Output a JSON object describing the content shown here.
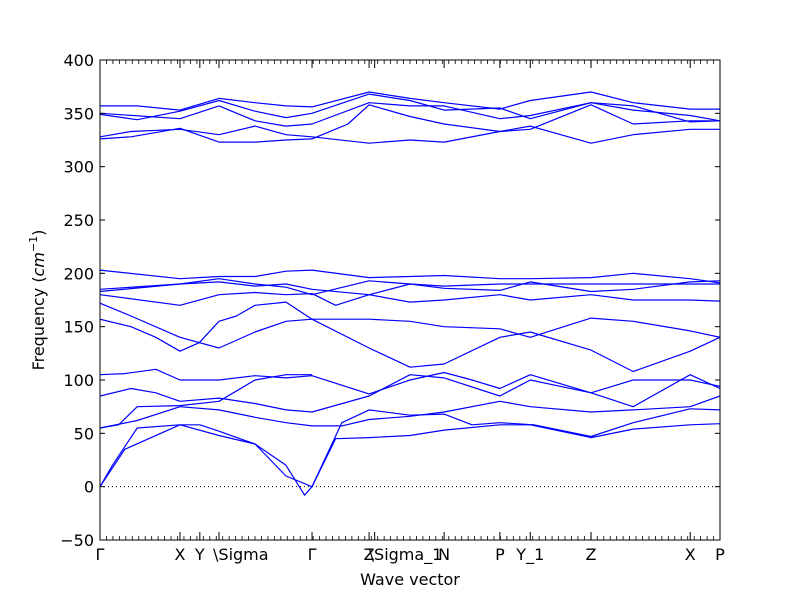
{
  "chart_data": {
    "type": "line",
    "xlabel": "Wave vector",
    "ylabel": "Frequency (cm⁻¹)",
    "ylabel_text": "Frequency (",
    "ylabel_unit_base": "cm",
    "ylabel_unit_exp": "−1",
    "ylabel_close": ")",
    "ylim": [
      -50,
      400
    ],
    "y_ticks": [
      -50,
      0,
      50,
      100,
      150,
      200,
      250,
      300,
      350,
      400
    ],
    "y_tick_labels": [
      "−50",
      "0",
      "50",
      "100",
      "150",
      "200",
      "250",
      "300",
      "350",
      "400"
    ],
    "xlim": [
      0,
      1
    ],
    "x_ticks": [
      {
        "label": "Γ",
        "x": 0.0
      },
      {
        "label": "X",
        "x": 0.129
      },
      {
        "label": "Y",
        "x": 0.161
      },
      {
        "label": "\\Sigma",
        "x": 0.192
      },
      {
        "label": "Γ",
        "x": 0.342
      },
      {
        "label": "Z",
        "x": 0.434
      },
      {
        "label": "\\Sigma_1",
        "x": 0.443
      },
      {
        "label": "N",
        "x": 0.555
      },
      {
        "label": "P",
        "x": 0.645
      },
      {
        "label": "Y_1",
        "x": 0.694
      },
      {
        "label": "Z",
        "x": 0.792
      },
      {
        "label": "X",
        "x": 0.952
      },
      {
        "label": "P",
        "x": 1.0
      }
    ],
    "zero_line": {
      "y": 0,
      "style": "dotted"
    },
    "series_color": "#0000ff",
    "series": [
      {
        "x": [
          0,
          0.02,
          0.06,
          0.129,
          0.161,
          0.192,
          0.25,
          0.3,
          0.33,
          0.342
        ],
        "y": [
          0,
          20,
          55,
          58,
          58,
          52,
          40,
          20,
          -8,
          0
        ]
      },
      {
        "x": [
          0,
          0.04,
          0.129,
          0.192,
          0.25,
          0.3,
          0.342
        ],
        "y": [
          0,
          35,
          58,
          48,
          40,
          10,
          0
        ]
      },
      {
        "x": [
          0.342,
          0.38,
          0.434,
          0.5,
          0.555,
          0.645,
          0.694,
          0.792,
          0.86,
          0.952,
          1.0
        ],
        "y": [
          0,
          45,
          46,
          48,
          53,
          58,
          58,
          46,
          54,
          58,
          59
        ]
      },
      {
        "x": [
          0.342,
          0.39,
          0.434,
          0.5,
          0.555,
          0.6,
          0.645,
          0.7,
          0.792,
          0.86,
          0.952,
          1.0
        ],
        "y": [
          0,
          60,
          72,
          67,
          68,
          58,
          60,
          58,
          47,
          60,
          73,
          72
        ]
      },
      {
        "x": [
          0,
          0.03,
          0.06,
          0.129,
          0.192,
          0.25,
          0.3,
          0.342
        ],
        "y": [
          55,
          58,
          75,
          76,
          80,
          100,
          105,
          105
        ]
      },
      {
        "x": [
          0,
          0.06,
          0.129,
          0.192,
          0.25,
          0.3,
          0.342,
          0.39,
          0.434,
          0.5,
          0.555,
          0.645,
          0.694,
          0.792,
          0.86,
          0.952,
          1.0
        ],
        "y": [
          55,
          62,
          75,
          72,
          65,
          60,
          57,
          57,
          63,
          66,
          70,
          80,
          75,
          70,
          72,
          75,
          85
        ]
      },
      {
        "x": [
          0,
          0.05,
          0.09,
          0.129,
          0.192,
          0.25,
          0.3,
          0.342,
          0.434,
          0.5,
          0.555,
          0.645,
          0.694,
          0.792,
          0.86,
          0.952,
          1.0
        ],
        "y": [
          85,
          92,
          88,
          80,
          83,
          78,
          72,
          70,
          85,
          105,
          102,
          85,
          100,
          88,
          75,
          105,
          92
        ]
      },
      {
        "x": [
          0,
          0.04,
          0.09,
          0.129,
          0.192,
          0.25,
          0.3,
          0.342,
          0.434,
          0.5,
          0.555,
          0.6,
          0.645,
          0.694,
          0.792,
          0.86,
          0.952,
          1.0
        ],
        "y": [
          105,
          106,
          110,
          100,
          100,
          104,
          102,
          104,
          87,
          100,
          107,
          100,
          92,
          105,
          88,
          100,
          100,
          94
        ]
      },
      {
        "x": [
          0,
          0.05,
          0.09,
          0.129,
          0.16,
          0.192,
          0.22,
          0.25,
          0.3,
          0.342,
          0.434,
          0.5,
          0.555,
          0.645,
          0.694,
          0.792,
          0.86,
          0.952,
          1.0
        ],
        "y": [
          157,
          150,
          140,
          127,
          135,
          155,
          160,
          170,
          173,
          157,
          130,
          112,
          115,
          140,
          145,
          128,
          108,
          127,
          140
        ]
      },
      {
        "x": [
          0,
          0.05,
          0.129,
          0.192,
          0.25,
          0.3,
          0.342,
          0.434,
          0.5,
          0.555,
          0.645,
          0.694,
          0.792,
          0.86,
          0.952,
          1.0
        ],
        "y": [
          172,
          160,
          140,
          130,
          145,
          155,
          157,
          157,
          155,
          150,
          148,
          140,
          158,
          155,
          146,
          140
        ]
      },
      {
        "x": [
          0,
          0.129,
          0.192,
          0.25,
          0.3,
          0.342,
          0.38,
          0.434,
          0.5,
          0.555,
          0.645,
          0.694,
          0.792,
          0.86,
          0.952,
          1.0
        ],
        "y": [
          180,
          170,
          180,
          182,
          180,
          181,
          170,
          180,
          173,
          175,
          180,
          175,
          180,
          175,
          175,
          174
        ]
      },
      {
        "x": [
          0,
          0.129,
          0.192,
          0.25,
          0.3,
          0.342,
          0.434,
          0.5,
          0.555,
          0.645,
          0.694,
          0.792,
          0.86,
          0.952,
          1.0
        ],
        "y": [
          185,
          190,
          192,
          188,
          190,
          185,
          180,
          190,
          188,
          190,
          190,
          190,
          190,
          190,
          190
        ]
      },
      {
        "x": [
          0,
          0.129,
          0.192,
          0.25,
          0.3,
          0.342,
          0.434,
          0.5,
          0.555,
          0.645,
          0.694,
          0.792,
          0.86,
          0.952,
          1.0
        ],
        "y": [
          203,
          195,
          197,
          197,
          202,
          203,
          196,
          197,
          198,
          195,
          195,
          196,
          200,
          195,
          191
        ]
      },
      {
        "x": [
          0,
          0.129,
          0.192,
          0.25,
          0.3,
          0.342,
          0.434,
          0.5,
          0.555,
          0.645,
          0.694,
          0.792,
          0.86,
          0.952,
          1.0
        ],
        "y": [
          183,
          190,
          195,
          190,
          187,
          180,
          193,
          190,
          186,
          184,
          192,
          183,
          185,
          192,
          193
        ]
      },
      {
        "x": [
          0,
          0.05,
          0.129,
          0.192,
          0.25,
          0.3,
          0.342,
          0.4,
          0.434,
          0.5,
          0.555,
          0.645,
          0.694,
          0.792,
          0.86,
          0.952,
          1.0
        ],
        "y": [
          326,
          328,
          336,
          323,
          323,
          325,
          326,
          340,
          358,
          347,
          340,
          333,
          335,
          358,
          340,
          343,
          343
        ]
      },
      {
        "x": [
          0,
          0.05,
          0.129,
          0.192,
          0.25,
          0.3,
          0.342,
          0.434,
          0.5,
          0.555,
          0.645,
          0.694,
          0.792,
          0.86,
          0.952,
          1.0
        ],
        "y": [
          328,
          333,
          335,
          330,
          338,
          330,
          328,
          322,
          325,
          323,
          333,
          338,
          322,
          330,
          335,
          335
        ]
      },
      {
        "x": [
          0,
          0.06,
          0.129,
          0.192,
          0.25,
          0.3,
          0.342,
          0.434,
          0.5,
          0.555,
          0.645,
          0.694,
          0.792,
          0.86,
          0.952,
          1.0
        ],
        "y": [
          349,
          344,
          352,
          362,
          352,
          346,
          350,
          368,
          362,
          353,
          355,
          345,
          360,
          357,
          342,
          343
        ]
      },
      {
        "x": [
          0,
          0.06,
          0.129,
          0.192,
          0.25,
          0.3,
          0.342,
          0.434,
          0.5,
          0.555,
          0.645,
          0.694,
          0.792,
          0.86,
          0.952,
          1.0
        ],
        "y": [
          357,
          357,
          353,
          364,
          360,
          357,
          356,
          370,
          364,
          360,
          354,
          362,
          370,
          360,
          354,
          354
        ]
      },
      {
        "x": [
          0,
          0.129,
          0.192,
          0.25,
          0.3,
          0.342,
          0.434,
          0.5,
          0.555,
          0.645,
          0.694,
          0.792,
          0.86,
          0.952,
          1.0
        ],
        "y": [
          350,
          345,
          357,
          343,
          338,
          340,
          360,
          357,
          357,
          345,
          348,
          360,
          353,
          348,
          343
        ]
      }
    ]
  }
}
